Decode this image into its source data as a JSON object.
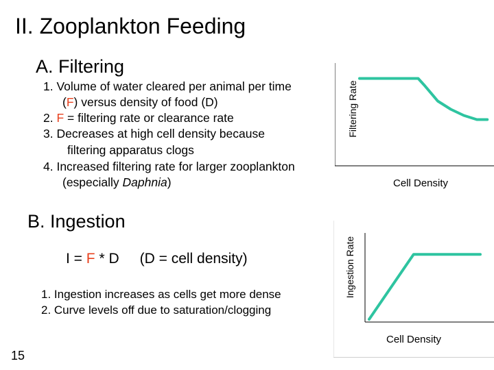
{
  "title": "II. Zooplankton Feeding",
  "slide_number": "15",
  "section_a": {
    "title": "A. Filtering",
    "items": [
      {
        "line1_pre": "1. Volume of water cleared per animal per time",
        "line2_pre": "(",
        "line2_red": "F",
        "line2_post": ") versus density of food (D)"
      },
      {
        "pre": "2.  ",
        "red": "F",
        "post": " = filtering rate or clearance rate"
      },
      {
        "line1": "3.   Decreases at high cell density because",
        "line2": "filtering apparatus clogs"
      },
      {
        "line1": "4.  Increased filtering rate for larger zooplankton",
        "line2_pre": "(especially ",
        "line2_italic": "Daphnia",
        "line2_post": ")"
      }
    ]
  },
  "section_b": {
    "title": "B. Ingestion",
    "formula": {
      "pre": "I = ",
      "red": "F",
      "post": " * D",
      "note": "(D = cell density)"
    },
    "items": [
      "1. Ingestion increases as cells get more dense",
      "2. Curve levels off due to saturation/clogging"
    ]
  },
  "charts": {
    "line_color": "#2ec4a0",
    "red_color": "#e8421f"
  },
  "chart_data": [
    {
      "type": "line",
      "title": "",
      "xlabel": "Cell Density",
      "ylabel": "Filtering Rate",
      "x": [
        0,
        0.45,
        0.5,
        0.6,
        0.7,
        0.8,
        0.9,
        0.98
      ],
      "series": [
        {
          "values": [
            0.85,
            0.85,
            0.78,
            0.63,
            0.55,
            0.49,
            0.45,
            0.45
          ]
        }
      ],
      "xlim": [
        0,
        1
      ],
      "ylim": [
        0,
        1
      ],
      "grid": false
    },
    {
      "type": "line",
      "title": "",
      "xlabel": "Cell Density",
      "ylabel": "Ingestion Rate",
      "x": [
        0,
        0.4,
        1
      ],
      "series": [
        {
          "values": [
            0,
            0.79,
            0.79
          ]
        }
      ],
      "xlim": [
        0,
        1
      ],
      "ylim": [
        0,
        1
      ],
      "grid": false
    }
  ]
}
